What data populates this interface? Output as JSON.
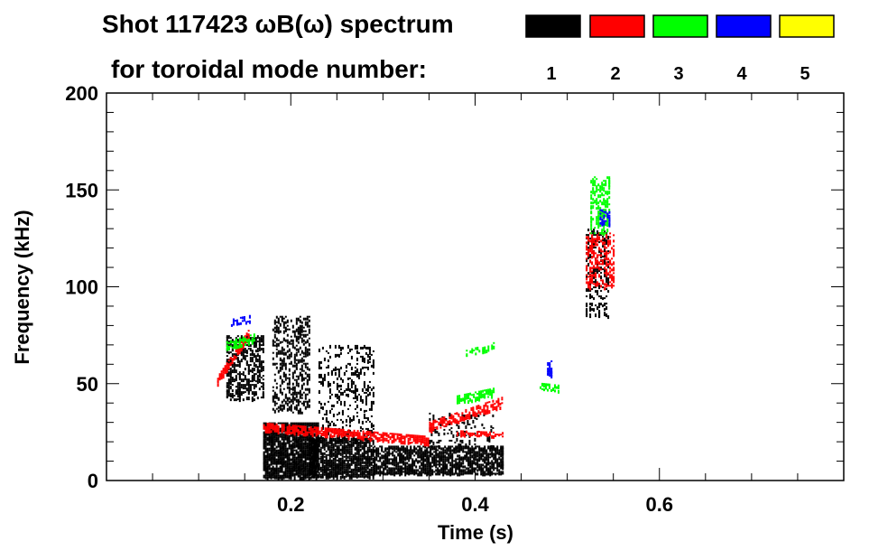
{
  "chart_data": {
    "type": "heatmap",
    "title": "Shot 117423 ωB(ω) spectrum",
    "legend_title": "for toroidal mode number:",
    "legend_placement": "top-right",
    "legend": [
      {
        "label": "1",
        "color": "#000000"
      },
      {
        "label": "2",
        "color": "#ff0000"
      },
      {
        "label": "3",
        "color": "#00ff00"
      },
      {
        "label": "4",
        "color": "#0000ff"
      },
      {
        "label": "5",
        "color": "#ffff00"
      }
    ],
    "xlabel": "Time (s)",
    "ylabel": "Frequency (kHz)",
    "xlim": [
      0,
      0.8
    ],
    "ylim": [
      0,
      200
    ],
    "xticks": [
      0.2,
      0.4,
      0.6
    ],
    "xtick_labels": [
      "0.2",
      "0.4",
      "0.6"
    ],
    "yticks": [
      0,
      50,
      100,
      150,
      200
    ],
    "ytick_labels": [
      "0",
      "50",
      "100",
      "150",
      "200"
    ],
    "grid": false,
    "features": [
      {
        "mode": 1,
        "t": [
          0.13,
          0.17
        ],
        "f": [
          42,
          75
        ],
        "density": 0.5
      },
      {
        "mode": 1,
        "t": [
          0.17,
          0.23
        ],
        "f": [
          2,
          30
        ],
        "density": 0.85
      },
      {
        "mode": 1,
        "t": [
          0.18,
          0.22
        ],
        "f": [
          35,
          85
        ],
        "density": 0.35
      },
      {
        "mode": 1,
        "t": [
          0.22,
          0.29
        ],
        "f": [
          2,
          22
        ],
        "density": 0.75
      },
      {
        "mode": 1,
        "t": [
          0.23,
          0.29
        ],
        "f": [
          20,
          70
        ],
        "density": 0.2
      },
      {
        "mode": 1,
        "t": [
          0.29,
          0.43
        ],
        "f": [
          4,
          18
        ],
        "density": 0.7
      },
      {
        "mode": 1,
        "t": [
          0.35,
          0.42
        ],
        "f": [
          18,
          35
        ],
        "density": 0.15
      },
      {
        "mode": 1,
        "t": [
          0.52,
          0.545
        ],
        "f": [
          85,
          130
        ],
        "density": 0.3
      },
      {
        "mode": 2,
        "t": [
          0.12,
          0.155
        ],
        "f_start": 52,
        "f_end": 77,
        "width": 4,
        "density": 0.8
      },
      {
        "mode": 2,
        "t": [
          0.17,
          0.35
        ],
        "f_start": 28,
        "f_end": 21,
        "width": 4,
        "density": 0.7
      },
      {
        "mode": 2,
        "t": [
          0.35,
          0.43
        ],
        "f_start": 28,
        "f_end": 41,
        "width": 5,
        "density": 0.6
      },
      {
        "mode": 2,
        "t": [
          0.38,
          0.43
        ],
        "f_start": 25,
        "f_end": 24,
        "width": 2,
        "density": 0.5
      },
      {
        "mode": 2,
        "t": [
          0.52,
          0.55
        ],
        "f": [
          100,
          128
        ],
        "density": 0.4
      },
      {
        "mode": 3,
        "t": [
          0.13,
          0.16
        ],
        "f_start": 70,
        "f_end": 74,
        "width": 4,
        "density": 0.6
      },
      {
        "mode": 3,
        "t": [
          0.38,
          0.42
        ],
        "f_start": 42,
        "f_end": 46,
        "width": 4,
        "density": 0.6
      },
      {
        "mode": 3,
        "t": [
          0.39,
          0.42
        ],
        "f_start": 66,
        "f_end": 70,
        "width": 3,
        "density": 0.4
      },
      {
        "mode": 3,
        "t": [
          0.47,
          0.49
        ],
        "f_start": 49,
        "f_end": 48,
        "width": 3,
        "density": 0.6
      },
      {
        "mode": 3,
        "t": [
          0.525,
          0.545
        ],
        "f": [
          128,
          157
        ],
        "density": 0.4
      },
      {
        "mode": 4,
        "t": [
          0.135,
          0.155
        ],
        "f_start": 82,
        "f_end": 84,
        "width": 3,
        "density": 0.4
      },
      {
        "mode": 4,
        "t": [
          0.478,
          0.482
        ],
        "f": [
          54,
          62
        ],
        "density": 0.6
      },
      {
        "mode": 4,
        "t": [
          0.535,
          0.545
        ],
        "f": [
          132,
          140
        ],
        "density": 0.5
      }
    ]
  }
}
